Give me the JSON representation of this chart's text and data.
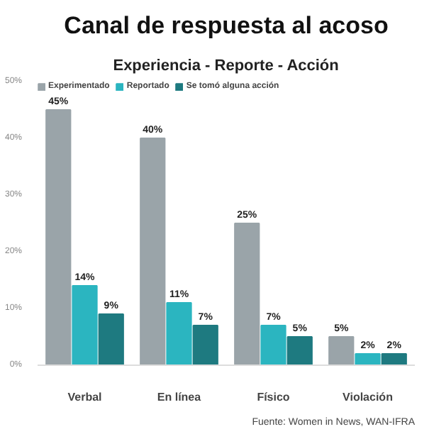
{
  "chart_data": {
    "type": "bar",
    "title": "Canal de respuesta al acoso",
    "subtitle": "Experiencia - Reporte - Acción",
    "categories": [
      "Verbal",
      "En línea",
      "Físico",
      "Violación"
    ],
    "series": [
      {
        "name": "Experimentado",
        "color": "#9aa4a9",
        "values": [
          45,
          40,
          25,
          5
        ],
        "value_labels": [
          "45%",
          "40%",
          "25%",
          "5%"
        ]
      },
      {
        "name": "Reportado",
        "color": "#2bb5c0",
        "values": [
          14,
          11,
          7,
          2
        ],
        "value_labels": [
          "14%",
          "11%",
          "7%",
          "2%"
        ]
      },
      {
        "name": "Se tomó alguna acción",
        "color": "#1e7a80",
        "values": [
          9,
          7,
          5,
          2
        ],
        "value_labels": [
          "9%",
          "7%",
          "5%",
          "2%"
        ]
      }
    ],
    "ylim": [
      0,
      50
    ],
    "yticks": [
      {
        "value": 0,
        "label": "0%"
      },
      {
        "value": 10,
        "label": "10%"
      },
      {
        "value": 20,
        "label": "20%"
      },
      {
        "value": 30,
        "label": "30%"
      },
      {
        "value": 40,
        "label": "40%"
      },
      {
        "value": 50,
        "label": "50%"
      }
    ],
    "grid": false,
    "legend": "top left",
    "annotations": [
      "Fuente: Women in News, WAN-IFRA"
    ]
  }
}
